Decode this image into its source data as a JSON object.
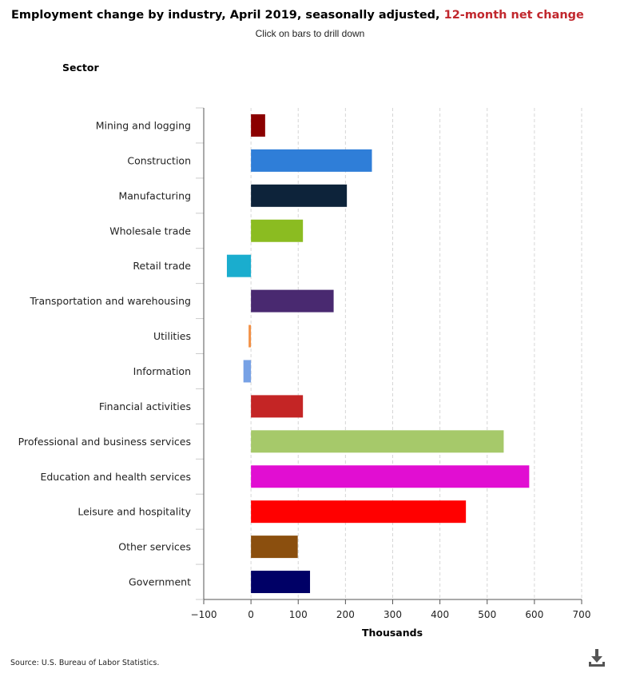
{
  "header": {
    "title_main": "Employment change by industry, April 2019, seasonally adjusted, ",
    "title_highlight": "12-month net change",
    "subtitle": "Click on bars to drill down",
    "highlight_color": "#c1272d"
  },
  "footer": {
    "source": "Source: U.S. Bureau of Labor Statistics.",
    "download_icon": "download-icon"
  },
  "chart_data": {
    "type": "bar",
    "orientation": "horizontal",
    "title": "Employment change by industry, April 2019, seasonally adjusted, 12-month net change",
    "subtitle": "Click on bars to drill down",
    "ylabel": "Sector",
    "xlabel": "Thousands",
    "xlim": [
      -100,
      700
    ],
    "xticks": [
      -100,
      0,
      100,
      200,
      300,
      400,
      500,
      600,
      700
    ],
    "xtick_labels": [
      "−100",
      "0",
      "100",
      "200",
      "300",
      "400",
      "500",
      "600",
      "700"
    ],
    "grid": "vertical dashed",
    "categories": [
      "Mining and logging",
      "Construction",
      "Manufacturing",
      "Wholesale trade",
      "Retail trade",
      "Transportation and warehousing",
      "Utilities",
      "Information",
      "Financial activities",
      "Professional and business services",
      "Education and health services",
      "Leisure and hospitality",
      "Other services",
      "Government"
    ],
    "values": [
      30,
      256,
      203,
      110,
      -51,
      175,
      -5,
      -16,
      110,
      535,
      589,
      455,
      99,
      125
    ],
    "colors": [
      "#8b0000",
      "#2f7ed8",
      "#0d233a",
      "#8bbc21",
      "#1aadce",
      "#492970",
      "#f28f43",
      "#77a1e5",
      "#c42525",
      "#a6c96a",
      "#e10ed2",
      "#ff0000",
      "#8b4f0e",
      "#000066"
    ]
  }
}
